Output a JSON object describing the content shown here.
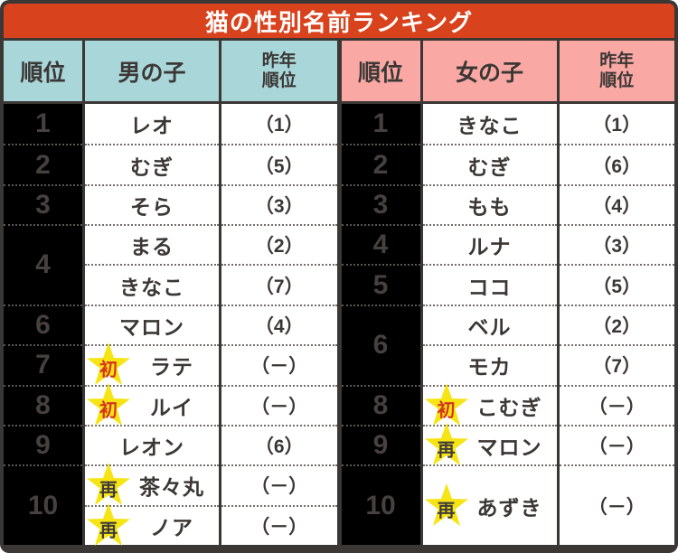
{
  "title": "猫の性別名前ランキング",
  "colors": {
    "title_bg": "#d8421c",
    "title_text": "#ffffff",
    "boys_header_bg": "#a9d6d8",
    "girls_header_bg": "#f9a8a4",
    "rank_col_bg": "#000000",
    "rank_col_text": "#46403e",
    "cell_bg": "#ffffff",
    "cell_text": "#3b3735",
    "frame": "#3b3735",
    "star_yellow": "#f6e414"
  },
  "badges": {
    "初": {
      "label": "初",
      "color": "#d5331f",
      "name": "first-appearance-star-badge"
    },
    "再": {
      "label": "再",
      "color": "#3f3b3a",
      "name": "reentry-star-badge"
    }
  },
  "tables": [
    {
      "id": "boys",
      "header_bg": "#a9d6d8",
      "header": {
        "rank": "順位",
        "name": "男の子",
        "last_year_line1": "昨年",
        "last_year_line2": "順位"
      },
      "rank_cells": [
        {
          "label": "1",
          "row": 1,
          "span": 1
        },
        {
          "label": "2",
          "row": 2,
          "span": 1
        },
        {
          "label": "3",
          "row": 3,
          "span": 1
        },
        {
          "label": "4",
          "row": 4,
          "span": 2
        },
        {
          "label": "6",
          "row": 6,
          "span": 1
        },
        {
          "label": "7",
          "row": 7,
          "span": 1
        },
        {
          "label": "8",
          "row": 8,
          "span": 1
        },
        {
          "label": "9",
          "row": 9,
          "span": 1
        },
        {
          "label": "10",
          "row": 10,
          "span": 2
        }
      ],
      "name_cells": [
        {
          "label": "レオ",
          "row": 1,
          "span": 1,
          "badge": null
        },
        {
          "label": "むぎ",
          "row": 2,
          "span": 1,
          "badge": null
        },
        {
          "label": "そら",
          "row": 3,
          "span": 1,
          "badge": null
        },
        {
          "label": "まる",
          "row": 4,
          "span": 1,
          "badge": null
        },
        {
          "label": "きなこ",
          "row": 5,
          "span": 1,
          "badge": null
        },
        {
          "label": "マロン",
          "row": 6,
          "span": 1,
          "badge": null
        },
        {
          "label": "ラテ",
          "row": 7,
          "span": 1,
          "badge": "初"
        },
        {
          "label": "ルイ",
          "row": 8,
          "span": 1,
          "badge": "初"
        },
        {
          "label": "レオン",
          "row": 9,
          "span": 1,
          "badge": null
        },
        {
          "label": "茶々丸",
          "row": 10,
          "span": 1,
          "badge": "再"
        },
        {
          "label": "ノア",
          "row": 11,
          "span": 1,
          "badge": "再"
        }
      ],
      "year_cells": [
        {
          "label": "（1）",
          "row": 1,
          "span": 1
        },
        {
          "label": "（5）",
          "row": 2,
          "span": 1
        },
        {
          "label": "（3）",
          "row": 3,
          "span": 1
        },
        {
          "label": "（2）",
          "row": 4,
          "span": 1
        },
        {
          "label": "（7）",
          "row": 5,
          "span": 1
        },
        {
          "label": "（4）",
          "row": 6,
          "span": 1
        },
        {
          "label": "（－）",
          "row": 7,
          "span": 1
        },
        {
          "label": "（－）",
          "row": 8,
          "span": 1
        },
        {
          "label": "（6）",
          "row": 9,
          "span": 1
        },
        {
          "label": "（－）",
          "row": 10,
          "span": 1
        },
        {
          "label": "（－）",
          "row": 11,
          "span": 1
        }
      ]
    },
    {
      "id": "girls",
      "header_bg": "#f9a8a4",
      "header": {
        "rank": "順位",
        "name": "女の子",
        "last_year_line1": "昨年",
        "last_year_line2": "順位"
      },
      "rank_cells": [
        {
          "label": "1",
          "row": 1,
          "span": 1
        },
        {
          "label": "2",
          "row": 2,
          "span": 1
        },
        {
          "label": "3",
          "row": 3,
          "span": 1
        },
        {
          "label": "4",
          "row": 4,
          "span": 1
        },
        {
          "label": "5",
          "row": 5,
          "span": 1
        },
        {
          "label": "6",
          "row": 6,
          "span": 2
        },
        {
          "label": "8",
          "row": 8,
          "span": 1
        },
        {
          "label": "9",
          "row": 9,
          "span": 1
        },
        {
          "label": "10",
          "row": 10,
          "span": 2
        }
      ],
      "name_cells": [
        {
          "label": "きなこ",
          "row": 1,
          "span": 1,
          "badge": null
        },
        {
          "label": "むぎ",
          "row": 2,
          "span": 1,
          "badge": null
        },
        {
          "label": "もも",
          "row": 3,
          "span": 1,
          "badge": null
        },
        {
          "label": "ルナ",
          "row": 4,
          "span": 1,
          "badge": null
        },
        {
          "label": "ココ",
          "row": 5,
          "span": 1,
          "badge": null
        },
        {
          "label": "ベル",
          "row": 6,
          "span": 1,
          "badge": null
        },
        {
          "label": "モカ",
          "row": 7,
          "span": 1,
          "badge": null
        },
        {
          "label": "こむぎ",
          "row": 8,
          "span": 1,
          "badge": "初"
        },
        {
          "label": "マロン",
          "row": 9,
          "span": 1,
          "badge": "再"
        },
        {
          "label": "あずき",
          "row": 10,
          "span": 2,
          "badge": "再"
        }
      ],
      "year_cells": [
        {
          "label": "（1）",
          "row": 1,
          "span": 1
        },
        {
          "label": "（6）",
          "row": 2,
          "span": 1
        },
        {
          "label": "（4）",
          "row": 3,
          "span": 1
        },
        {
          "label": "（3）",
          "row": 4,
          "span": 1
        },
        {
          "label": "（5）",
          "row": 5,
          "span": 1
        },
        {
          "label": "（2）",
          "row": 6,
          "span": 1
        },
        {
          "label": "（7）",
          "row": 7,
          "span": 1
        },
        {
          "label": "（－）",
          "row": 8,
          "span": 1
        },
        {
          "label": "（－）",
          "row": 9,
          "span": 1
        },
        {
          "label": "（－）",
          "row": 10,
          "span": 2
        }
      ]
    }
  ]
}
